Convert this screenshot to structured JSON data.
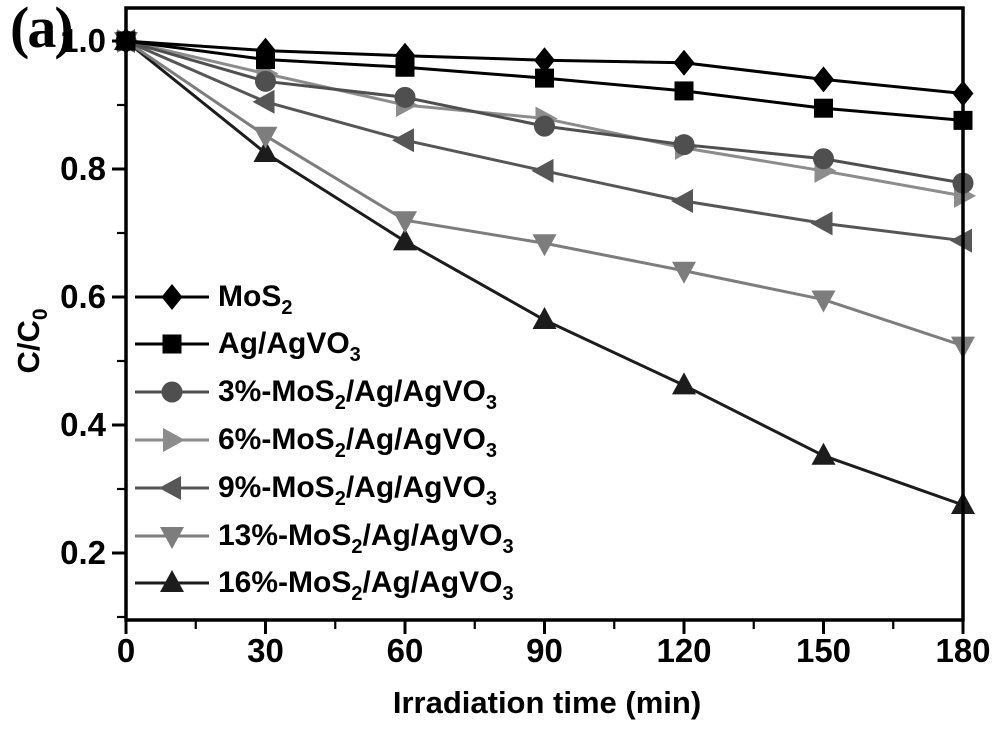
{
  "panel_label": "(a)",
  "chart_data": {
    "type": "line",
    "title": "",
    "xlabel": "Irradiation time (min)",
    "ylabel": "C/C0",
    "ylabel_parts": [
      {
        "t": "C/C"
      },
      {
        "t": "0",
        "sub": true
      }
    ],
    "x": [
      0,
      30,
      60,
      90,
      120,
      150,
      180
    ],
    "xlim": [
      0,
      180
    ],
    "ylim": [
      0.09,
      1.05
    ],
    "x_tick_labels": [
      "0",
      "30",
      "60",
      "90",
      "120",
      "150",
      "180"
    ],
    "x_minor_ticks": [
      15,
      45,
      75,
      105,
      135,
      165
    ],
    "y_ticks": [
      1.0,
      0.8,
      0.6,
      0.4,
      0.2
    ],
    "y_tick_labels": [
      "1.0",
      "0.8",
      "0.6",
      "0.4",
      "0.2"
    ],
    "y_minor_ticks": [
      0.9,
      0.7,
      0.5,
      0.3,
      0.1
    ],
    "grid": false,
    "legend_position": "middle-left",
    "frame_color": "#000000",
    "background_color": "#ffffff",
    "series": [
      {
        "name": "MoS2",
        "label_parts": [
          {
            "t": "MoS"
          },
          {
            "t": "2",
            "sub": true
          }
        ],
        "marker": "diamond",
        "color": "#000000",
        "values": [
          1.0,
          0.985,
          0.977,
          0.97,
          0.966,
          0.94,
          0.918
        ]
      },
      {
        "name": "Ag/AgVO3",
        "label_parts": [
          {
            "t": "Ag/AgVO"
          },
          {
            "t": "3",
            "sub": true
          }
        ],
        "marker": "square",
        "color": "#000000",
        "values": [
          1.0,
          0.971,
          0.959,
          0.942,
          0.922,
          0.895,
          0.876
        ]
      },
      {
        "name": "3%-MoS2/Ag/AgVO3",
        "label_parts": [
          {
            "t": "3%-MoS"
          },
          {
            "t": "2",
            "sub": true
          },
          {
            "t": "/Ag/AgVO"
          },
          {
            "t": "3",
            "sub": true
          }
        ],
        "marker": "circle",
        "color": "#4f4f4f",
        "values": [
          1.0,
          0.937,
          0.912,
          0.867,
          0.838,
          0.816,
          0.778
        ]
      },
      {
        "name": "6%-MoS2/Ag/AgVO3",
        "label_parts": [
          {
            "t": "6%-MoS"
          },
          {
            "t": "2",
            "sub": true
          },
          {
            "t": "/Ag/AgVO"
          },
          {
            "t": "3",
            "sub": true
          }
        ],
        "marker": "triangle-right",
        "color": "#8c8c8c",
        "values": [
          1.0,
          0.949,
          0.9,
          0.879,
          0.833,
          0.797,
          0.758
        ]
      },
      {
        "name": "9%-MoS2/Ag/AgVO3",
        "label_parts": [
          {
            "t": "9%-MoS"
          },
          {
            "t": "2",
            "sub": true
          },
          {
            "t": "/Ag/AgVO"
          },
          {
            "t": "3",
            "sub": true
          }
        ],
        "marker": "triangle-left",
        "color": "#565656",
        "values": [
          1.0,
          0.905,
          0.845,
          0.797,
          0.75,
          0.715,
          0.688
        ]
      },
      {
        "name": "13%-MoS2/Ag/AgVO3",
        "label_parts": [
          {
            "t": "13%-MoS"
          },
          {
            "t": "2",
            "sub": true
          },
          {
            "t": "/Ag/AgVO"
          },
          {
            "t": "3",
            "sub": true
          }
        ],
        "marker": "triangle-down",
        "color": "#7d7d7d",
        "values": [
          1.0,
          0.852,
          0.72,
          0.684,
          0.641,
          0.596,
          0.524
        ]
      },
      {
        "name": "16%-MoS2/Ag/AgVO3",
        "label_parts": [
          {
            "t": "16%-MoS"
          },
          {
            "t": "2",
            "sub": true
          },
          {
            "t": "/Ag/AgVO"
          },
          {
            "t": "3",
            "sub": true
          }
        ],
        "marker": "triangle-up",
        "color": "#1c1c1c",
        "values": [
          1.0,
          0.825,
          0.687,
          0.564,
          0.462,
          0.352,
          0.275
        ]
      }
    ]
  }
}
